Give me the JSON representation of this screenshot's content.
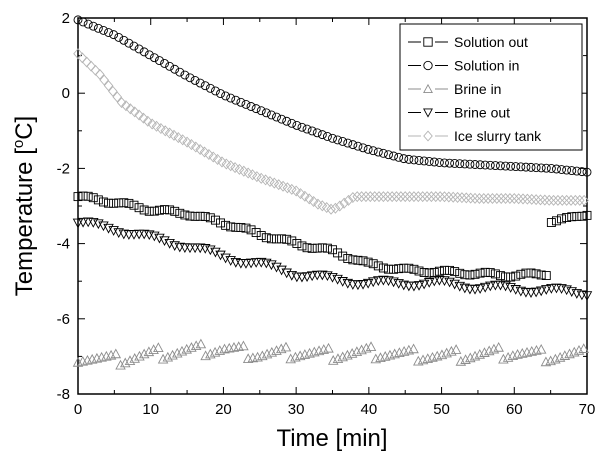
{
  "chart_data": {
    "type": "scatter",
    "title": "",
    "xlabel": "Time [min]",
    "ylabel_parts": {
      "pre": "Temperature [",
      "sup": "o",
      "post": "C]"
    },
    "xlim": [
      0,
      70
    ],
    "ylim": [
      -8,
      2
    ],
    "xticks": [
      "0",
      "10",
      "20",
      "30",
      "40",
      "50",
      "60",
      "70"
    ],
    "yticks": [
      "-8",
      "-6",
      "-4",
      "-2",
      "0",
      "2"
    ],
    "grid": false,
    "legend_position": "top-right",
    "series": [
      {
        "name": "Solution out",
        "marker": "square",
        "color": "#000000",
        "x": [
          0,
          5,
          10,
          15,
          20,
          25,
          30,
          35,
          40,
          45,
          50,
          55,
          60,
          64.5,
          65,
          67.5,
          70
        ],
        "y": [
          -2.75,
          -2.9,
          -3.1,
          -3.2,
          -3.45,
          -3.75,
          -4.0,
          -4.2,
          -4.55,
          -4.7,
          -4.75,
          -4.8,
          -4.85,
          -4.8,
          -3.4,
          -3.35,
          -3.2
        ]
      },
      {
        "name": "Solution in",
        "marker": "circle",
        "color": "#000000",
        "x": [
          0,
          5,
          10,
          15,
          20,
          25,
          30,
          35,
          40,
          45,
          50,
          55,
          60,
          65,
          70
        ],
        "y": [
          1.95,
          1.55,
          1.0,
          0.45,
          -0.05,
          -0.45,
          -0.85,
          -1.2,
          -1.5,
          -1.75,
          -1.85,
          -1.9,
          -1.95,
          -2.0,
          -2.1
        ]
      },
      {
        "name": "Brine in",
        "marker": "triangle-up",
        "color": "#8c8c8c",
        "x": [
          0,
          5,
          10,
          15,
          20,
          25,
          30,
          35,
          40,
          45,
          50,
          55,
          60,
          65,
          70
        ],
        "y": [
          -7.0,
          -7.1,
          -6.95,
          -6.85,
          -6.8,
          -6.95,
          -6.9,
          -6.95,
          -6.9,
          -6.95,
          -7.0,
          -6.95,
          -6.9,
          -7.0,
          -6.95
        ]
      },
      {
        "name": "Brine out",
        "marker": "triangle-down",
        "color": "#000000",
        "x": [
          0,
          5,
          10,
          15,
          20,
          25,
          30,
          35,
          40,
          45,
          50,
          55,
          60,
          65,
          70
        ],
        "y": [
          -3.45,
          -3.6,
          -3.85,
          -4.05,
          -4.35,
          -4.55,
          -4.8,
          -4.95,
          -5.05,
          -5.05,
          -5.05,
          -5.15,
          -5.2,
          -5.25,
          -5.3
        ]
      },
      {
        "name": "Ice slurry tank",
        "marker": "diamond",
        "color": "#b4b4b4",
        "x": [
          0,
          3,
          6,
          10,
          15,
          20,
          25,
          30,
          33,
          35,
          36,
          38,
          40,
          45,
          50,
          55,
          60,
          65,
          70
        ],
        "y": [
          1.05,
          0.5,
          -0.25,
          -0.8,
          -1.3,
          -1.85,
          -2.25,
          -2.6,
          -2.95,
          -3.1,
          -3.0,
          -2.75,
          -2.75,
          -2.75,
          -2.75,
          -2.8,
          -2.8,
          -2.85,
          -2.85
        ]
      }
    ]
  }
}
